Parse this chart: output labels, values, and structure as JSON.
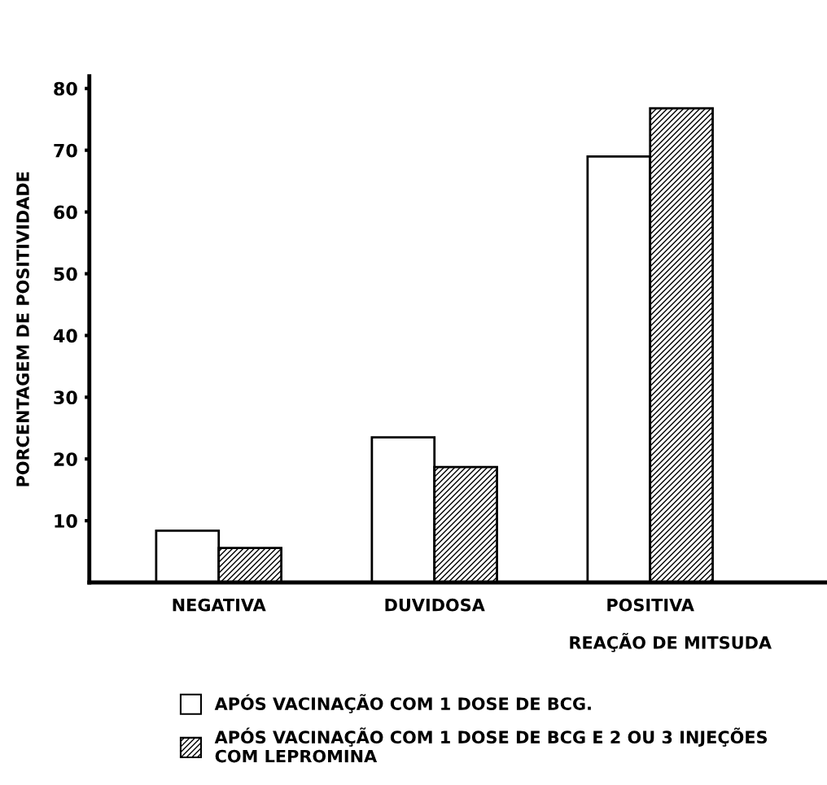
{
  "chart_data": {
    "type": "bar",
    "xlabel": "REAÇÃO DE MITSUDA",
    "ylabel": "PORCENTAGEM DE POSITIVIDADE",
    "categories": [
      "NEGATIVA",
      "DUVIDOSA",
      "POSITIVA"
    ],
    "series": [
      {
        "name": "APÓS VACINAÇÃO COM 1 DOSE DE BCG.",
        "color": "#ffffff",
        "values": [
          8.4,
          23.5,
          69
        ]
      },
      {
        "name": "APÓS VACINAÇÃO COM 1 DOSE DE BCG E 2 OU 3 INJEÇÕES\nCOM LEPROMINA",
        "color": "#000000",
        "values": [
          5.6,
          18.7,
          76.8
        ]
      }
    ],
    "ylim": [
      0,
      82
    ],
    "yticks": [
      10,
      20,
      30,
      40,
      50,
      60,
      70,
      80
    ],
    "grid": false,
    "legend": "bottom left"
  }
}
